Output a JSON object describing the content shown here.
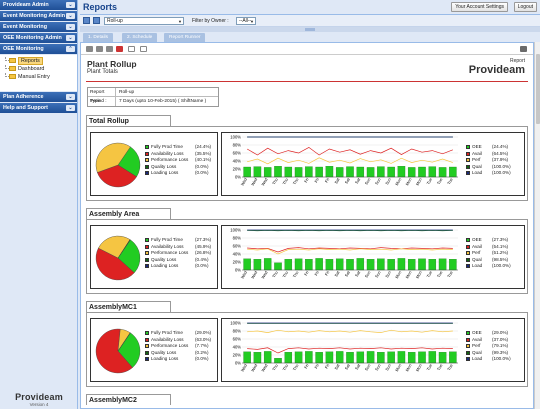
{
  "sidebar": {
    "headers": [
      {
        "label": "Provideam Admin"
      },
      {
        "label": "Event Monitoring Admin"
      },
      {
        "label": "Event Monitoring"
      },
      {
        "label": "OEE Monitoring Admin"
      },
      {
        "label": "OEE Monitoring"
      }
    ],
    "tree": [
      {
        "label": "Reports",
        "selected": true
      },
      {
        "label": "Dashboard",
        "selected": false
      },
      {
        "label": "Manual Entry",
        "selected": false
      }
    ],
    "headers_bottom": [
      {
        "label": "Plan Adherence"
      },
      {
        "label": "Help and Support"
      }
    ],
    "logo": {
      "brand": "Provideam",
      "version": "Version 4"
    }
  },
  "topbar": {
    "title": "Reports",
    "account_settings": "Your Account Settings",
    "logout": "Logout"
  },
  "toolbar": {
    "report_select": "Roll-up",
    "filter_label": "Filter by Owner :",
    "owner_select": "--All--"
  },
  "tabs": [
    "1. Details",
    "2. Schedule",
    "Report Runner"
  ],
  "report": {
    "title": "Plant Rollup",
    "subtitle": "Plant Totals",
    "logo_caption": "Report",
    "logo_brand": "Provideam",
    "params": [
      {
        "key": "Report Type :",
        "value": "Roll-up"
      },
      {
        "key": "Period :",
        "value": "7 Days (upto 10-Feb-2015) ( ShiftName )"
      }
    ]
  },
  "colors": {
    "prod": "#22cc22",
    "avail": "#dd2222",
    "perf": "#f5c542",
    "qual": "#116611",
    "load": "#1a2a7a",
    "oee": "#22cc22"
  },
  "day_labels": [
    "Wed",
    "Wed",
    "Wed",
    "Thu",
    "Thu",
    "Thu",
    "Fri",
    "Fri",
    "Fri",
    "Sat",
    "Sat",
    "Sat",
    "Sun",
    "Sun",
    "Sun",
    "Mon",
    "Mon",
    "Mon",
    "Tue",
    "Tue",
    "Tue"
  ],
  "y_ticks": [
    "100%",
    "80%",
    "60%",
    "40%",
    "20%",
    "0%"
  ],
  "sections": [
    {
      "name": "Total Rollup",
      "pie_legend": [
        {
          "label": "Fully Prod Time",
          "value": "(24.4%)"
        },
        {
          "label": "Availability Loss",
          "value": "(35.5%)"
        },
        {
          "label": "Performance Loss",
          "value": "(40.1%)"
        },
        {
          "label": "Quality Loss",
          "value": "(0.0%)"
        },
        {
          "label": "Loading Loss",
          "value": "(0.0%)"
        }
      ],
      "pie_values": [
        24.4,
        35.5,
        40.1,
        0.0,
        0.0
      ],
      "trend_legend": [
        {
          "label": "OEE",
          "value": "(24.4%)"
        },
        {
          "label": "Avail",
          "value": "(64.5%)"
        },
        {
          "label": "Perf",
          "value": "(37.9%)"
        },
        {
          "label": "Qual",
          "value": "(100.0%)"
        },
        {
          "label": "Load",
          "value": "(100.0%)"
        }
      ],
      "oee": [
        25,
        26,
        24,
        27,
        25,
        24,
        26,
        25,
        27,
        24,
        26,
        25,
        24,
        26,
        25,
        27,
        24,
        25,
        26,
        24,
        25
      ],
      "avail": [
        70,
        55,
        72,
        58,
        66,
        60,
        74,
        55,
        70,
        62,
        68,
        57,
        66,
        60,
        72,
        56,
        70,
        62,
        66,
        58,
        68
      ],
      "perf": [
        38,
        45,
        33,
        47,
        36,
        42,
        34,
        48,
        37,
        42,
        35,
        46,
        38,
        43,
        34,
        47,
        36,
        42,
        37,
        45,
        36
      ],
      "qual": [
        100,
        100,
        100,
        100,
        100,
        100,
        100,
        100,
        100,
        100,
        100,
        100,
        100,
        100,
        100,
        100,
        100,
        100,
        100,
        100,
        100
      ],
      "load": [
        100,
        100,
        100,
        100,
        100,
        100,
        100,
        100,
        100,
        100,
        100,
        100,
        100,
        100,
        100,
        100,
        100,
        100,
        100,
        100,
        100
      ]
    },
    {
      "name": "Assembly Area",
      "pie_legend": [
        {
          "label": "Fully Prod Time",
          "value": "(27.3%)"
        },
        {
          "label": "Availability Loss",
          "value": "(45.9%)"
        },
        {
          "label": "Performance Loss",
          "value": "(26.8%)"
        },
        {
          "label": "Quality Loss",
          "value": "(0.4%)"
        },
        {
          "label": "Loading Loss",
          "value": "(0.0%)"
        }
      ],
      "pie_values": [
        27.3,
        45.9,
        26.8,
        0.4,
        0.0
      ],
      "trend_legend": [
        {
          "label": "OEE",
          "value": "(27.3%)"
        },
        {
          "label": "Avail",
          "value": "(54.1%)"
        },
        {
          "label": "Perf",
          "value": "(51.2%)"
        },
        {
          "label": "Qual",
          "value": "(98.5%)"
        },
        {
          "label": "Load",
          "value": "(100.0%)"
        }
      ],
      "oee": [
        28,
        27,
        29,
        18,
        27,
        28,
        27,
        29,
        27,
        28,
        27,
        29,
        27,
        28,
        27,
        29,
        27,
        28,
        27,
        28,
        27
      ],
      "avail": [
        55,
        53,
        54,
        45,
        54,
        56,
        53,
        55,
        54,
        53,
        55,
        54,
        53,
        56,
        54,
        53,
        55,
        54,
        53,
        55,
        54
      ],
      "perf": [
        52,
        50,
        53,
        40,
        51,
        52,
        50,
        53,
        51,
        52,
        50,
        53,
        51,
        52,
        50,
        53,
        51,
        52,
        50,
        52,
        51
      ],
      "qual": [
        99,
        98,
        99,
        98,
        99,
        98,
        99,
        98,
        99,
        98,
        99,
        98,
        99,
        98,
        99,
        98,
        99,
        98,
        99,
        98,
        99
      ],
      "load": [
        100,
        100,
        100,
        100,
        100,
        100,
        100,
        100,
        100,
        100,
        100,
        100,
        100,
        100,
        100,
        100,
        100,
        100,
        100,
        100,
        100
      ]
    },
    {
      "name": "AssemblyMC1",
      "pie_legend": [
        {
          "label": "Fully Prod Time",
          "value": "(29.0%)"
        },
        {
          "label": "Availability Loss",
          "value": "(63.0%)"
        },
        {
          "label": "Performance Loss",
          "value": "(7.7%)"
        },
        {
          "label": "Quality Loss",
          "value": "(0.2%)"
        },
        {
          "label": "Loading Loss",
          "value": "(0.0%)"
        }
      ],
      "pie_values": [
        29.0,
        63.0,
        7.7,
        0.2,
        0.0
      ],
      "trend_legend": [
        {
          "label": "OEE",
          "value": "(29.0%)"
        },
        {
          "label": "Avail",
          "value": "(37.0%)"
        },
        {
          "label": "Perf",
          "value": "(79.1%)"
        },
        {
          "label": "Qual",
          "value": "(99.3%)"
        },
        {
          "label": "Load",
          "value": "(100.0%)"
        }
      ],
      "oee": [
        28,
        27,
        29,
        12,
        27,
        28,
        29,
        27,
        28,
        29,
        27,
        28,
        29,
        27,
        28,
        29,
        27,
        28,
        29,
        27,
        28
      ],
      "avail": [
        36,
        34,
        38,
        25,
        36,
        38,
        35,
        37,
        36,
        38,
        35,
        37,
        36,
        38,
        35,
        37,
        36,
        38,
        35,
        37,
        36
      ],
      "perf": [
        78,
        80,
        76,
        82,
        78,
        80,
        77,
        81,
        78,
        80,
        77,
        81,
        78,
        76,
        82,
        78,
        80,
        77,
        81,
        78,
        80
      ],
      "qual": [
        99,
        99,
        99,
        99,
        99,
        99,
        99,
        99,
        99,
        99,
        99,
        99,
        99,
        99,
        99,
        99,
        99,
        99,
        99,
        99,
        99
      ],
      "load": [
        100,
        100,
        100,
        100,
        100,
        100,
        100,
        100,
        100,
        100,
        100,
        100,
        100,
        100,
        100,
        100,
        100,
        100,
        100,
        100,
        100
      ]
    },
    {
      "name": "AssemblyMC2"
    }
  ]
}
